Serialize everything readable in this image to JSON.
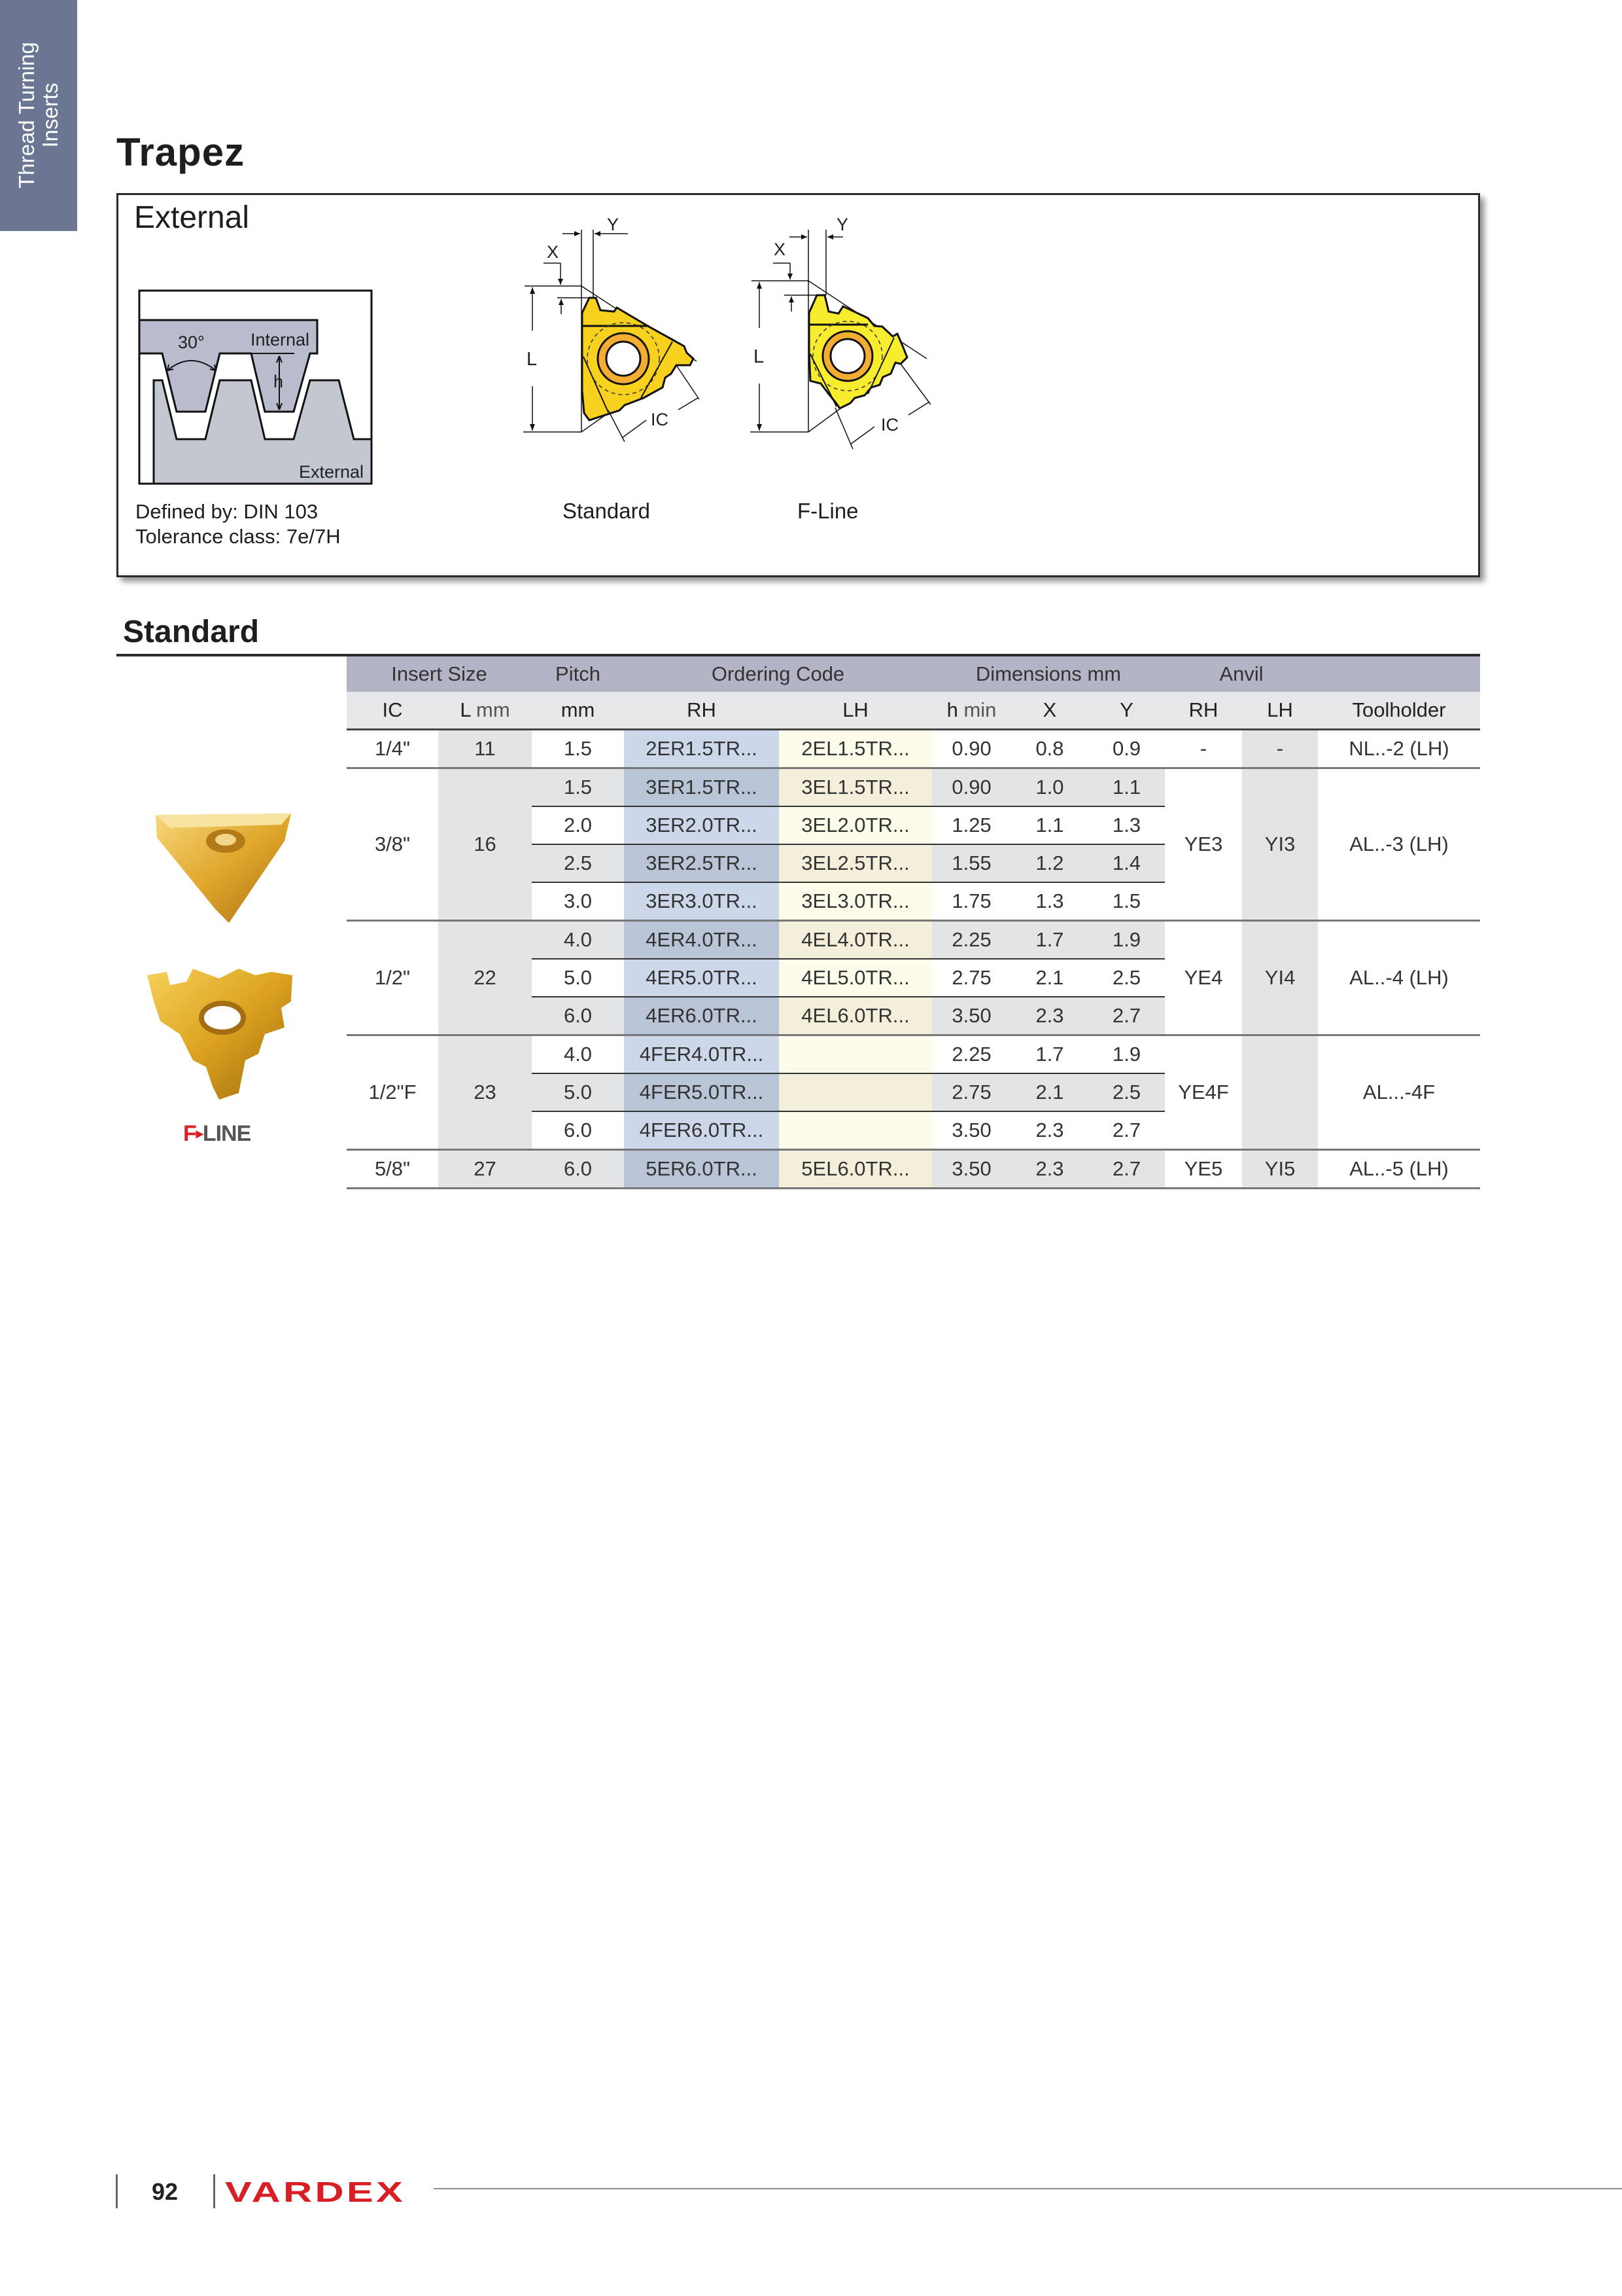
{
  "sidebar": {
    "line1": "Thread Turning",
    "line2": "Inserts"
  },
  "page_title": "Trapez",
  "external_box": {
    "title": "External",
    "thread_diagram": {
      "angle": "30°",
      "internal_label": "Internal",
      "h_label": "h",
      "external_label": "External"
    },
    "defined_by": "Defined by: DIN 103",
    "tolerance": "Tolerance class: 7e/7H",
    "insert_diagrams": {
      "x_label": "X",
      "y_label": "Y",
      "l_label": "L",
      "ic_label": "IC"
    },
    "standard_label": "Standard",
    "fline_label": "F-Line"
  },
  "section_heading": "Standard",
  "fline_logo": {
    "f": "F",
    "line": "LINE"
  },
  "table": {
    "header1": {
      "insert_size": "Insert Size",
      "pitch": "Pitch",
      "ordering_code": "Ordering Code",
      "dimensions": "Dimensions mm",
      "anvil": "Anvil"
    },
    "header2": {
      "ic": "IC",
      "l": "L",
      "l_unit": " mm",
      "mm": "mm",
      "rh": "RH",
      "lh": "LH",
      "h": "h",
      "h_unit": " min",
      "x": "X",
      "y": "Y",
      "anvil_rh": "RH",
      "anvil_lh": "LH",
      "toolholder": "Toolholder"
    },
    "groups": [
      {
        "ic": "1/4\"",
        "l": "11",
        "anvil_rh": "-",
        "anvil_lh": "-",
        "toolholder": "NL..-2 (LH)",
        "rows": [
          {
            "pitch": "1.5",
            "rh": "2ER1.5TR...",
            "lh": "2EL1.5TR...",
            "h_min": "0.90",
            "x": "0.8",
            "y": "0.9"
          }
        ]
      },
      {
        "ic": "3/8\"",
        "l": "16",
        "anvil_rh": "YE3",
        "anvil_lh": "YI3",
        "toolholder": "AL..-3 (LH)",
        "rows": [
          {
            "pitch": "1.5",
            "rh": "3ER1.5TR...",
            "lh": "3EL1.5TR...",
            "h_min": "0.90",
            "x": "1.0",
            "y": "1.1"
          },
          {
            "pitch": "2.0",
            "rh": "3ER2.0TR...",
            "lh": "3EL2.0TR...",
            "h_min": "1.25",
            "x": "1.1",
            "y": "1.3"
          },
          {
            "pitch": "2.5",
            "rh": "3ER2.5TR...",
            "lh": "3EL2.5TR...",
            "h_min": "1.55",
            "x": "1.2",
            "y": "1.4"
          },
          {
            "pitch": "3.0",
            "rh": "3ER3.0TR...",
            "lh": "3EL3.0TR...",
            "h_min": "1.75",
            "x": "1.3",
            "y": "1.5"
          }
        ]
      },
      {
        "ic": "1/2\"",
        "l": "22",
        "anvil_rh": "YE4",
        "anvil_lh": "YI4",
        "toolholder": "AL..-4 (LH)",
        "rows": [
          {
            "pitch": "4.0",
            "rh": "4ER4.0TR...",
            "lh": "4EL4.0TR...",
            "h_min": "2.25",
            "x": "1.7",
            "y": "1.9"
          },
          {
            "pitch": "5.0",
            "rh": "4ER5.0TR...",
            "lh": "4EL5.0TR...",
            "h_min": "2.75",
            "x": "2.1",
            "y": "2.5"
          },
          {
            "pitch": "6.0",
            "rh": "4ER6.0TR...",
            "lh": "4EL6.0TR...",
            "h_min": "3.50",
            "x": "2.3",
            "y": "2.7"
          }
        ]
      },
      {
        "ic": "1/2\"F",
        "l": "23",
        "anvil_rh": "YE4F",
        "anvil_lh": "",
        "toolholder": "AL...-4F",
        "rows": [
          {
            "pitch": "4.0",
            "rh": "4FER4.0TR...",
            "lh": "",
            "h_min": "2.25",
            "x": "1.7",
            "y": "1.9"
          },
          {
            "pitch": "5.0",
            "rh": "4FER5.0TR...",
            "lh": "",
            "h_min": "2.75",
            "x": "2.1",
            "y": "2.5"
          },
          {
            "pitch": "6.0",
            "rh": "4FER6.0TR...",
            "lh": "",
            "h_min": "3.50",
            "x": "2.3",
            "y": "2.7"
          }
        ]
      },
      {
        "ic": "5/8\"",
        "l": "27",
        "anvil_rh": "YE5",
        "anvil_lh": "YI5",
        "toolholder": "AL..-5 (LH)",
        "rows": [
          {
            "pitch": "6.0",
            "rh": "5ER6.0TR...",
            "lh": "5EL6.0TR...",
            "h_min": "3.50",
            "x": "2.3",
            "y": "2.7"
          }
        ]
      }
    ]
  },
  "footer": {
    "page_number": "92",
    "brand": "VARDEX"
  },
  "colors": {
    "sidebar": "#6b7693",
    "header": "#b3b5c7",
    "rh_column": "#cdd7ea",
    "lh_column": "#fdfbe9",
    "insert_gold": "#f5d21f",
    "brand_red": "#d91f26"
  }
}
